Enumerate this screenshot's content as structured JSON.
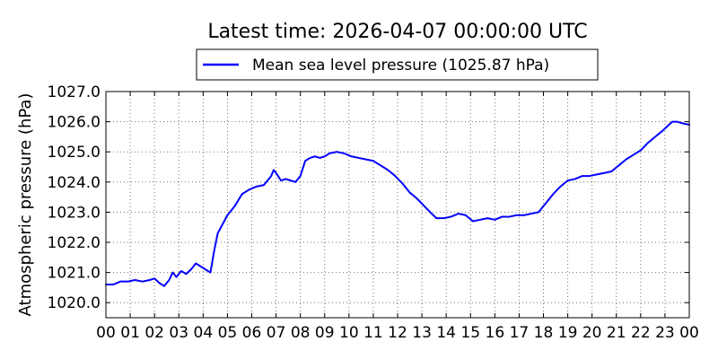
{
  "chart_data": {
    "type": "line",
    "title": "Latest time: 2026-04-07 00:00:00 UTC",
    "xlabel": "",
    "ylabel": "Atmospheric pressure (hPa)",
    "x_unit": "hour (UTC)",
    "xlim": [
      0,
      24
    ],
    "ylim": [
      1019.5,
      1027.0
    ],
    "x_ticks": [
      {
        "value": 0,
        "label": "00"
      },
      {
        "value": 1,
        "label": "01"
      },
      {
        "value": 2,
        "label": "02"
      },
      {
        "value": 3,
        "label": "03"
      },
      {
        "value": 4,
        "label": "04"
      },
      {
        "value": 5,
        "label": "05"
      },
      {
        "value": 6,
        "label": "06"
      },
      {
        "value": 7,
        "label": "07"
      },
      {
        "value": 8,
        "label": "08"
      },
      {
        "value": 9,
        "label": "09"
      },
      {
        "value": 10,
        "label": "10"
      },
      {
        "value": 11,
        "label": "11"
      },
      {
        "value": 12,
        "label": "12"
      },
      {
        "value": 13,
        "label": "13"
      },
      {
        "value": 14,
        "label": "14"
      },
      {
        "value": 15,
        "label": "15"
      },
      {
        "value": 16,
        "label": "16"
      },
      {
        "value": 17,
        "label": "17"
      },
      {
        "value": 18,
        "label": "18"
      },
      {
        "value": 19,
        "label": "19"
      },
      {
        "value": 20,
        "label": "20"
      },
      {
        "value": 21,
        "label": "21"
      },
      {
        "value": 22,
        "label": "22"
      },
      {
        "value": 23,
        "label": "23"
      },
      {
        "value": 24,
        "label": "00"
      }
    ],
    "y_ticks": [
      {
        "value": 1020.0,
        "label": "1020.0"
      },
      {
        "value": 1021.0,
        "label": "1021.0"
      },
      {
        "value": 1022.0,
        "label": "1022.0"
      },
      {
        "value": 1023.0,
        "label": "1023.0"
      },
      {
        "value": 1024.0,
        "label": "1024.0"
      },
      {
        "value": 1025.0,
        "label": "1025.0"
      },
      {
        "value": 1026.0,
        "label": "1026.0"
      },
      {
        "value": 1027.0,
        "label": "1027.0"
      }
    ],
    "grid": true,
    "legend_position": "top-center",
    "series": [
      {
        "name": "Mean sea level pressure (1025.87 hPa)",
        "color": "#0000ff",
        "x": [
          0.0,
          0.3,
          0.6,
          0.9,
          1.2,
          1.5,
          1.8,
          2.0,
          2.2,
          2.4,
          2.6,
          2.75,
          2.9,
          3.1,
          3.3,
          3.5,
          3.7,
          3.9,
          4.1,
          4.3,
          4.45,
          4.6,
          4.8,
          5.0,
          5.3,
          5.6,
          5.9,
          6.2,
          6.5,
          6.8,
          6.9,
          7.0,
          7.2,
          7.4,
          7.6,
          7.8,
          8.0,
          8.2,
          8.4,
          8.6,
          8.8,
          9.0,
          9.2,
          9.5,
          9.8,
          10.1,
          10.4,
          10.7,
          11.0,
          11.3,
          11.6,
          11.9,
          12.2,
          12.5,
          12.8,
          13.1,
          13.4,
          13.6,
          13.9,
          14.2,
          14.5,
          14.8,
          15.1,
          15.4,
          15.7,
          16.0,
          16.3,
          16.6,
          16.9,
          17.2,
          17.5,
          17.8,
          18.1,
          18.4,
          18.7,
          19.0,
          19.3,
          19.6,
          19.9,
          20.2,
          20.5,
          20.8,
          21.1,
          21.4,
          21.7,
          22.0,
          22.3,
          22.6,
          22.9,
          23.1,
          23.3,
          23.5,
          23.7,
          24.0
        ],
        "y": [
          1020.6,
          1020.6,
          1020.7,
          1020.7,
          1020.75,
          1020.7,
          1020.75,
          1020.8,
          1020.65,
          1020.55,
          1020.75,
          1021.0,
          1020.85,
          1021.05,
          1020.95,
          1021.1,
          1021.3,
          1021.2,
          1021.1,
          1021.0,
          1021.7,
          1022.3,
          1022.6,
          1022.9,
          1023.2,
          1023.6,
          1023.75,
          1023.85,
          1023.9,
          1024.2,
          1024.4,
          1024.3,
          1024.05,
          1024.1,
          1024.05,
          1024.0,
          1024.2,
          1024.7,
          1024.8,
          1024.85,
          1024.8,
          1024.85,
          1024.95,
          1025.0,
          1024.95,
          1024.85,
          1024.8,
          1024.75,
          1024.7,
          1024.55,
          1024.4,
          1024.2,
          1023.95,
          1023.65,
          1023.45,
          1023.2,
          1022.95,
          1022.8,
          1022.8,
          1022.85,
          1022.95,
          1022.9,
          1022.7,
          1022.75,
          1022.8,
          1022.75,
          1022.85,
          1022.85,
          1022.9,
          1022.9,
          1022.95,
          1023.0,
          1023.3,
          1023.6,
          1023.85,
          1024.05,
          1024.1,
          1024.2,
          1024.2,
          1024.25,
          1024.3,
          1024.35,
          1024.55,
          1024.75,
          1024.9,
          1025.05,
          1025.3,
          1025.5,
          1025.7,
          1025.85,
          1026.0,
          1026.0,
          1025.95,
          1025.9
        ]
      }
    ]
  }
}
